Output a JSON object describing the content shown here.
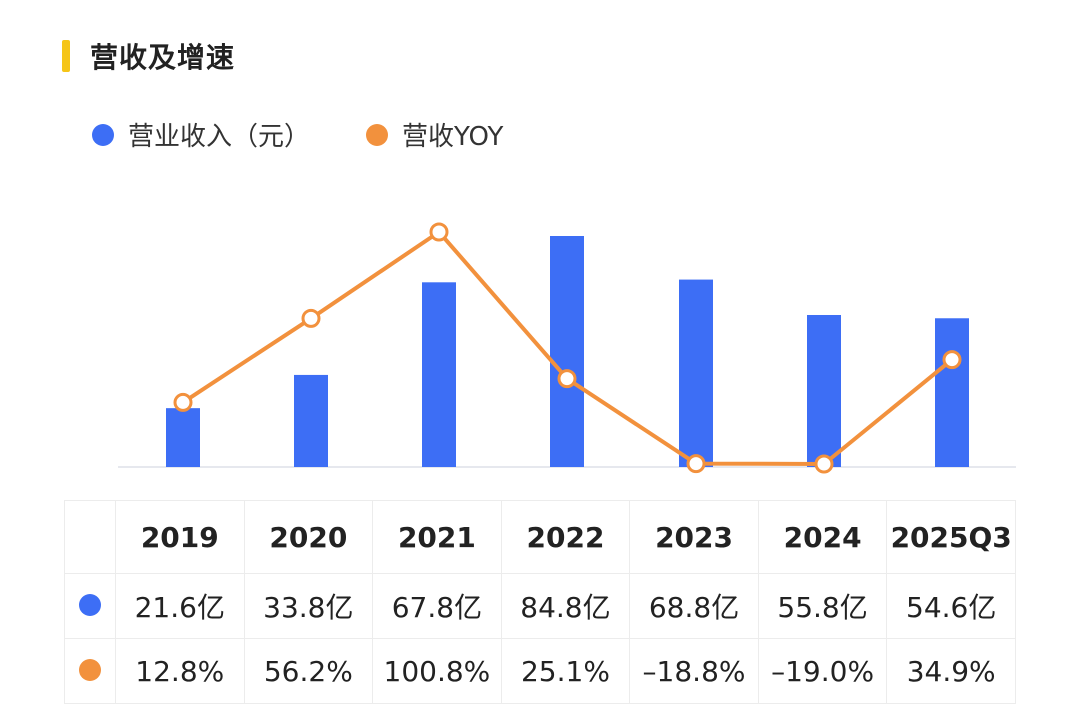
{
  "title": "营收及增速",
  "colors": {
    "revenue": "#3d6ef5",
    "yoy": "#f2913d",
    "accent": "#f5c518"
  },
  "legend": {
    "revenue_label": "营业收入（元）",
    "yoy_label": "营收YOY"
  },
  "table": {
    "revenue_row": [
      "21.6亿",
      "33.8亿",
      "67.8亿",
      "84.8亿",
      "68.8亿",
      "55.8亿",
      "54.6亿"
    ],
    "yoy_row": [
      "12.8%",
      "56.2%",
      "100.8%",
      "25.1%",
      "–18.8%",
      "–19.0%",
      "34.9%"
    ]
  },
  "chart_data": {
    "type": "bar",
    "categories": [
      "2019",
      "2020",
      "2021",
      "2022",
      "2023",
      "2024",
      "2025Q3"
    ],
    "series": [
      {
        "name": "营业收入（元）",
        "type": "bar",
        "unit": "亿",
        "values": [
          21.6,
          33.8,
          67.8,
          84.8,
          68.8,
          55.8,
          54.6
        ]
      },
      {
        "name": "营收YOY",
        "type": "line",
        "unit": "%",
        "values": [
          12.8,
          56.2,
          100.8,
          25.1,
          -18.8,
          -19.0,
          34.9
        ]
      }
    ],
    "grid": false,
    "legend_position": "top-left"
  }
}
